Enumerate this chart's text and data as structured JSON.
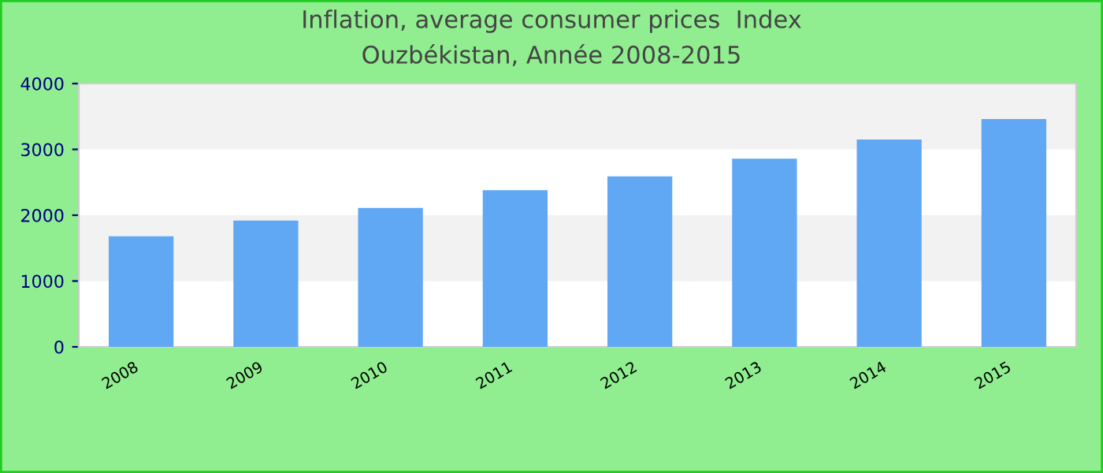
{
  "chart_data": {
    "type": "bar",
    "title": "Inflation, average consumer prices  Index",
    "subtitle": "Ouzbékistan, Année 2008-2015",
    "categories": [
      "2008",
      "2009",
      "2010",
      "2011",
      "2012",
      "2013",
      "2014",
      "2015"
    ],
    "values": [
      1680,
      1920,
      2110,
      2380,
      2590,
      2860,
      3150,
      3460
    ],
    "color": "#60a8f4",
    "ylim": [
      0,
      4000
    ],
    "yticks": [
      0,
      1000,
      2000,
      3000,
      4000
    ],
    "bands": [
      {
        "axis": "y",
        "from": 1000,
        "to": 2000,
        "color": "#f2f2f2"
      },
      {
        "axis": "y",
        "from": 3000,
        "to": 4000,
        "color": "#f2f2f2"
      }
    ]
  }
}
